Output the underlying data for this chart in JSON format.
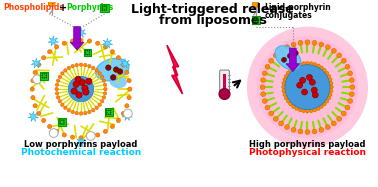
{
  "title_line1": "Light-triggered release",
  "title_line2": "from liposomes",
  "title_fontsize": 9.0,
  "title_color": "#000000",
  "left_label1": "Low porphyrins payload",
  "left_label2": "Photochemical reaction",
  "left_label1_color": "#000000",
  "left_label2_color": "#00ccff",
  "right_label1": "High porphyrins payload",
  "right_label1_color": "#000000",
  "right_label2": "Photophysical reaction",
  "right_label2_color": "#ff0000",
  "phospholipids_label": "Phospholipids",
  "phospholipids_color": "#ff4400",
  "porphyrins_label": "Porphyrins",
  "porphyrins_color": "#00cc00",
  "lipid_porphyrin_label1": "Lipid-porphyrin",
  "lipid_porphyrin_label2": "conjugates",
  "lipid_porphyrin_color": "#000000",
  "bg_color": "#ffffff",
  "label_fontsize": 5.5,
  "sublabel_fontsize": 6.0,
  "sublabel2_fontsize": 6.5
}
